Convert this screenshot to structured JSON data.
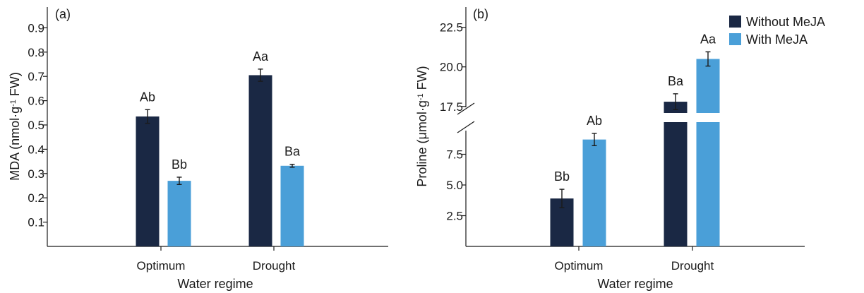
{
  "legend": [
    {
      "label": "Without MeJA",
      "color": "#1a2844"
    },
    {
      "label": "With MeJA",
      "color": "#4a9fd8"
    }
  ],
  "chart_data": [
    {
      "type": "bar",
      "panel_label": "(a)",
      "ylabel": "MDA (nmol·g",
      "ylabel_sup": "-1",
      "ylabel_tail": " FW)",
      "xlabel": "Water regime",
      "categories": [
        "Optimum",
        "Drought"
      ],
      "ylim": [
        0,
        1.0
      ],
      "yticks": [
        "0.1",
        "0.2",
        "0.3",
        "0.4",
        "0.5",
        "0.6",
        "0.7",
        "0.8",
        "0.9"
      ],
      "ytick_values": [
        0.1,
        0.2,
        0.3,
        0.4,
        0.5,
        0.6,
        0.7,
        0.8,
        0.9
      ],
      "series": [
        {
          "name": "Without MeJA",
          "values": [
            0.535,
            0.705
          ],
          "errors": [
            0.028,
            0.025
          ],
          "labels": [
            "Ab",
            "Aa"
          ]
        },
        {
          "name": "With MeJA",
          "values": [
            0.27,
            0.332
          ],
          "errors": [
            0.015,
            0.006
          ],
          "labels": [
            "Bb",
            "Ba"
          ]
        }
      ]
    },
    {
      "type": "bar",
      "panel_label": "(b)",
      "ylabel": "Proline (μmol·g",
      "ylabel_sup": "-1",
      "ylabel_tail": " FW)",
      "xlabel": "Water regime",
      "categories": [
        "Optimum",
        "Drought"
      ],
      "y_axis_break": [
        10,
        17
      ],
      "ylim": [
        0,
        24
      ],
      "yticks": [
        "2.5",
        "5.0",
        "7.5",
        "17.5",
        "20.0",
        "22.5"
      ],
      "ytick_values": [
        2.5,
        5.0,
        7.5,
        17.5,
        20.0,
        22.5
      ],
      "series": [
        {
          "name": "Without MeJA",
          "values": [
            3.9,
            17.8
          ],
          "errors": [
            0.75,
            0.5
          ],
          "labels": [
            "Bb",
            "Ba"
          ]
        },
        {
          "name": "With MeJA",
          "values": [
            8.7,
            20.5
          ],
          "errors": [
            0.5,
            0.45
          ],
          "labels": [
            "Ab",
            "Aa"
          ]
        }
      ]
    }
  ]
}
